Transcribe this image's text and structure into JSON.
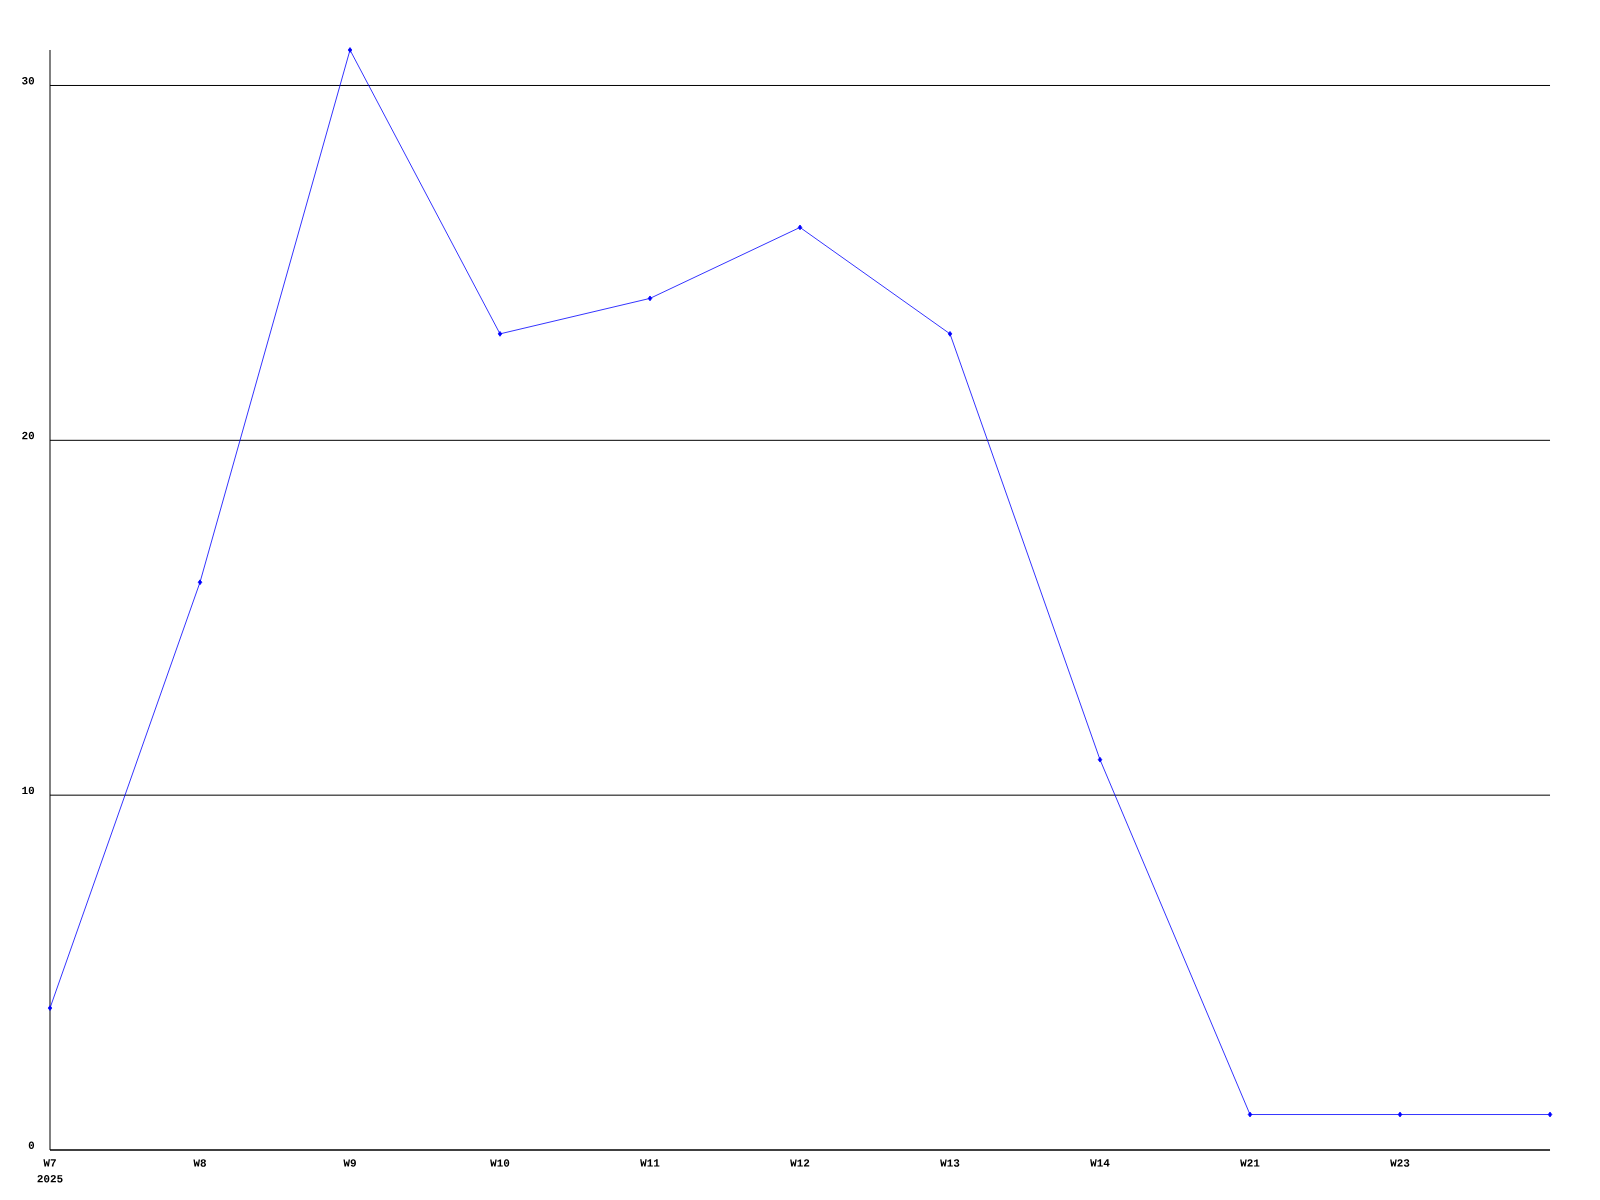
{
  "chart_data": {
    "type": "line",
    "categories": [
      "W7",
      "W8",
      "W9",
      "W10",
      "W11",
      "W12",
      "W13",
      "W14",
      "W21",
      "W23",
      null
    ],
    "values": [
      4,
      16,
      31,
      23,
      24,
      26,
      23,
      11,
      1,
      1,
      1
    ],
    "color": "#0000ff",
    "ylim": [
      0,
      31
    ],
    "yticks": [
      0,
      10,
      20,
      30
    ],
    "grid": "y",
    "marker": "diamond",
    "line_style": "solid",
    "annotations": [
      "2025"
    ]
  }
}
